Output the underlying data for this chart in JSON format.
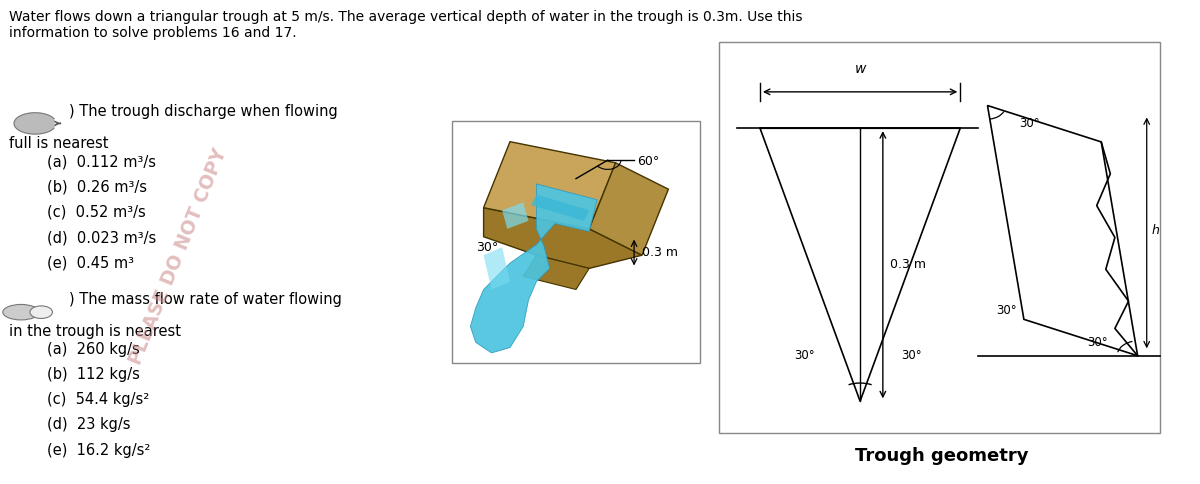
{
  "title_text": "Water flows down a triangular trough at 5 m/s. The average vertical depth of water in the trough is 0.3m. Use this\ninformation to solve problems 16 and 17.",
  "problem16_intro_line1": ") The trough discharge when flowing",
  "problem16_intro_line2": "full is nearest",
  "problem16_options": [
    "(a)  0.112 m³/s",
    "(b)  0.26 m³/s",
    "(c)  0.52 m³/s",
    "(d)  0.023 m³/s",
    "(e)  0.45 m³"
  ],
  "problem17_intro_line1": ") The mass flow rate of water flowing",
  "problem17_intro_line2": "in the trough is nearest",
  "problem17_options": [
    "(a)  260 kg/s",
    "(b)  112 kg/s",
    "(c)  54.4 kg/s²",
    "(d)  23 kg/s",
    "(e)  16.2 kg/s²"
  ],
  "geometry_label": "Trough geometry",
  "bg_color": "#ffffff",
  "text_color": "#000000",
  "watermark_color": "#cc8888",
  "watermark_text": "PLEASE DO NOT COPY",
  "wood_light": "#c8a55a",
  "wood_mid": "#b09040",
  "wood_dark": "#9a7828",
  "water_color": "#4dc4e0",
  "water_dark": "#2a9abf",
  "font_size_title": 10.0,
  "font_size_body": 10.5,
  "font_size_options": 10.5
}
